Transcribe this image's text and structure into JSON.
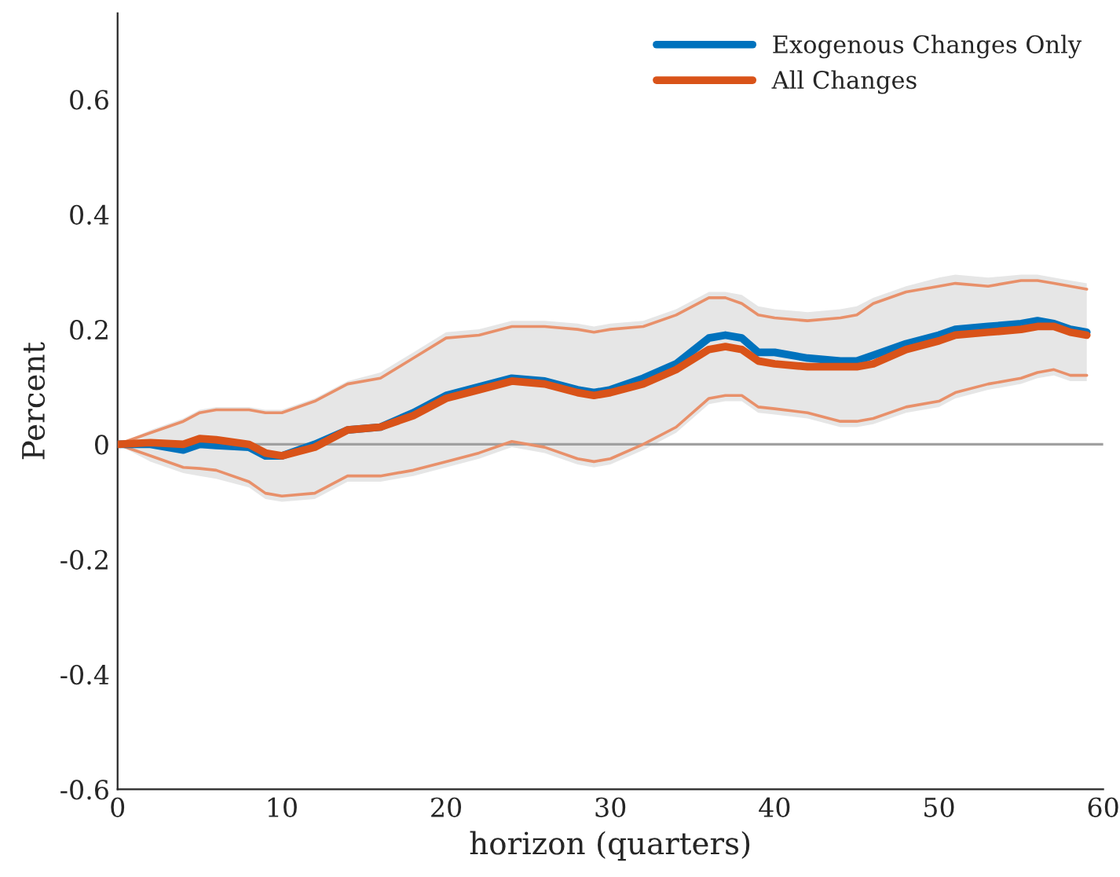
{
  "chart_data": {
    "type": "line",
    "xlabel": "horizon (quarters)",
    "ylabel": "Percent",
    "x": [
      0,
      2,
      4,
      5,
      6,
      8,
      9,
      10,
      12,
      14,
      16,
      18,
      20,
      22,
      24,
      26,
      28,
      29,
      30,
      32,
      34,
      36,
      37,
      38,
      39,
      40,
      42,
      44,
      45,
      46,
      48,
      50,
      51,
      53,
      55,
      56,
      57,
      58,
      59
    ],
    "series": [
      {
        "name": "Exogenous Changes Only",
        "color": "#0072bd",
        "values": [
          0,
          0.0,
          -0.01,
          0.0,
          -0.002,
          -0.005,
          -0.02,
          -0.02,
          0.0,
          0.025,
          0.03,
          0.055,
          0.085,
          0.1,
          0.115,
          0.11,
          0.095,
          0.09,
          0.095,
          0.115,
          0.14,
          0.185,
          0.19,
          0.185,
          0.16,
          0.16,
          0.15,
          0.145,
          0.145,
          0.155,
          0.175,
          0.19,
          0.2,
          0.205,
          0.21,
          0.215,
          0.21,
          0.2,
          0.195
        ],
        "lower": [
          0,
          -0.03,
          -0.05,
          -0.055,
          -0.06,
          -0.075,
          -0.095,
          -0.1,
          -0.095,
          -0.065,
          -0.065,
          -0.055,
          -0.04,
          -0.025,
          -0.005,
          -0.015,
          -0.035,
          -0.04,
          -0.035,
          -0.01,
          0.02,
          0.07,
          0.075,
          0.075,
          0.055,
          0.052,
          0.045,
          0.03,
          0.03,
          0.035,
          0.055,
          0.065,
          0.08,
          0.095,
          0.105,
          0.115,
          0.12,
          0.11,
          0.11
        ],
        "upper": [
          0,
          0.025,
          0.045,
          0.06,
          0.065,
          0.065,
          0.06,
          0.06,
          0.08,
          0.11,
          0.125,
          0.16,
          0.195,
          0.2,
          0.215,
          0.215,
          0.21,
          0.205,
          0.21,
          0.215,
          0.235,
          0.265,
          0.265,
          0.26,
          0.24,
          0.235,
          0.23,
          0.235,
          0.24,
          0.255,
          0.275,
          0.29,
          0.295,
          0.29,
          0.295,
          0.295,
          0.29,
          0.285,
          0.28
        ]
      },
      {
        "name": "All Changes",
        "color": "#d95319",
        "values": [
          0,
          0.003,
          0.0,
          0.01,
          0.008,
          0.0,
          -0.015,
          -0.02,
          -0.005,
          0.025,
          0.03,
          0.05,
          0.08,
          0.095,
          0.11,
          0.105,
          0.09,
          0.085,
          0.09,
          0.105,
          0.13,
          0.165,
          0.17,
          0.165,
          0.145,
          0.14,
          0.135,
          0.135,
          0.135,
          0.14,
          0.165,
          0.18,
          0.19,
          0.195,
          0.2,
          0.205,
          0.205,
          0.195,
          0.19
        ]
      },
      {
        "color": "#e8906a",
        "values": [
          0,
          0.02,
          0.04,
          0.055,
          0.06,
          0.06,
          0.055,
          0.055,
          0.075,
          0.105,
          0.115,
          0.15,
          0.185,
          0.19,
          0.205,
          0.205,
          0.2,
          0.195,
          0.2,
          0.205,
          0.225,
          0.255,
          0.255,
          0.245,
          0.225,
          0.22,
          0.215,
          0.22,
          0.225,
          0.245,
          0.265,
          0.275,
          0.28,
          0.275,
          0.285,
          0.285,
          0.28,
          0.275,
          0.27
        ]
      },
      {
        "color": "#e8906a",
        "values": [
          0,
          -0.02,
          -0.04,
          -0.042,
          -0.045,
          -0.065,
          -0.085,
          -0.09,
          -0.085,
          -0.055,
          -0.055,
          -0.045,
          -0.03,
          -0.015,
          0.005,
          -0.005,
          -0.025,
          -0.03,
          -0.025,
          0.0,
          0.03,
          0.08,
          0.085,
          0.085,
          0.065,
          0.062,
          0.055,
          0.04,
          0.04,
          0.045,
          0.065,
          0.075,
          0.09,
          0.105,
          0.115,
          0.125,
          0.13,
          0.12,
          0.12
        ]
      }
    ],
    "xlim": [
      0,
      60
    ],
    "xticks": [
      0,
      10,
      20,
      30,
      40,
      50,
      60
    ],
    "ylim": [
      -0.6,
      0.75
    ],
    "yticks": [
      -0.6,
      -0.4,
      -0.2,
      0,
      0.2,
      0.4,
      0.6
    ],
    "ref_lines": [
      {
        "axis": "y",
        "value": 0,
        "color": "#a0a0a0"
      }
    ],
    "legend": "top right",
    "grid": false
  }
}
